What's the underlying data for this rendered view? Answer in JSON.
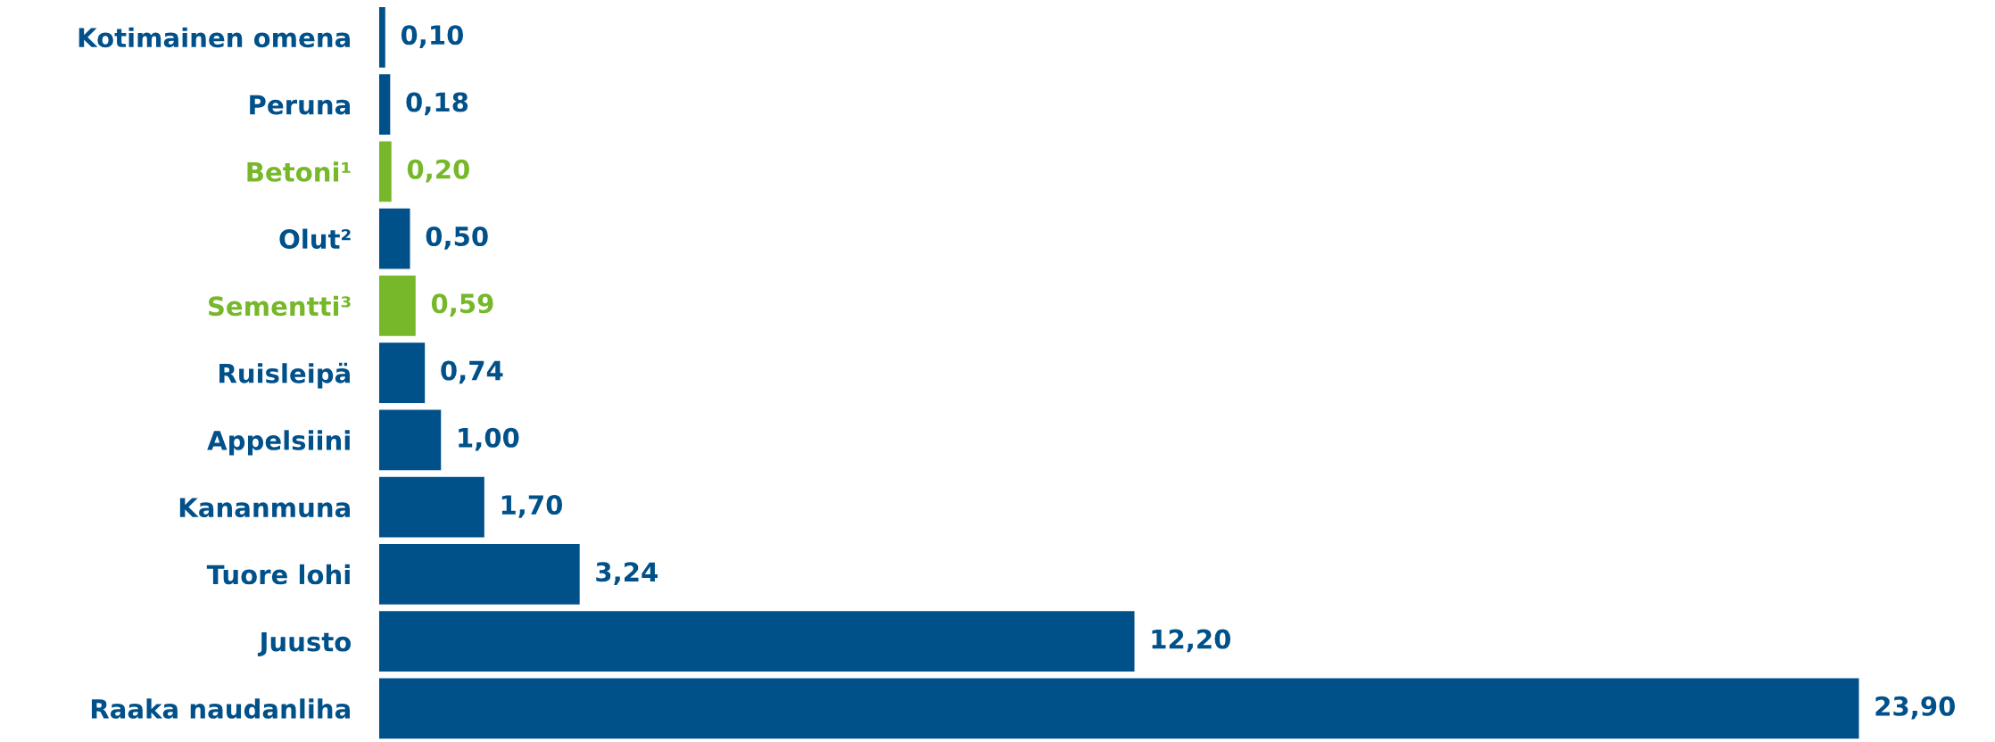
{
  "chart_data": {
    "type": "bar",
    "orientation": "horizontal",
    "categories": [
      "Kotimainen omena",
      "Peruna",
      "Betoni¹",
      "Olut²",
      "Sementti³",
      "Ruisleipä",
      "Appelsiini",
      "Kananmuna",
      "Tuore lohi",
      "Juusto",
      "Raaka naudanliha"
    ],
    "values": [
      0.1,
      0.18,
      0.2,
      0.5,
      0.59,
      0.74,
      1.0,
      1.7,
      3.24,
      12.2,
      23.9
    ],
    "colors": [
      "#00508a",
      "#00508a",
      "#76b82a",
      "#00508a",
      "#76b82a",
      "#00508a",
      "#00508a",
      "#00508a",
      "#00508a",
      "#00508a",
      "#00508a"
    ],
    "value_labels": [
      "0,10",
      "0,18",
      "0,20",
      "0,50",
      "0,59",
      "0,74",
      "1,00",
      "1,70",
      "3,24",
      "12,20",
      "23,90"
    ],
    "tick_labels": "y",
    "grid": false,
    "legend": false
  }
}
